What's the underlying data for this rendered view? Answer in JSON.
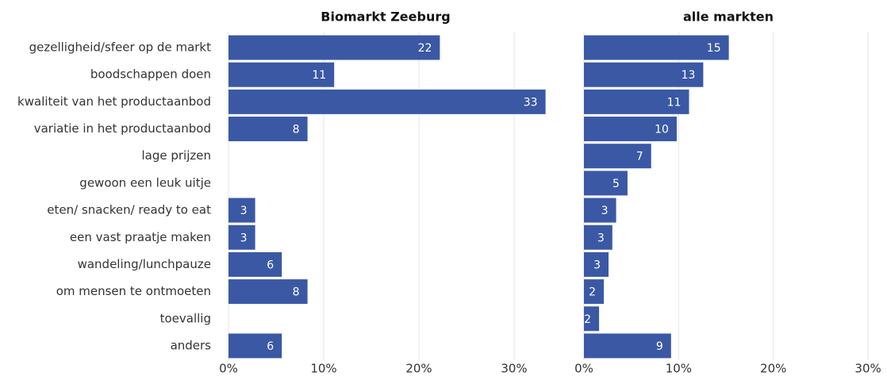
{
  "chart_data": [
    {
      "type": "bar",
      "orientation": "horizontal",
      "title": "Biomarkt Zeeburg",
      "color": "#3a58a4",
      "grid": true,
      "categories": [
        "gezelligheid/sfeer op de markt",
        "boodschappen doen",
        "kwaliteit van het productaanbod",
        "variatie in het productaanbod",
        "lage prijzen",
        "gewoon een leuk uitje",
        "eten/ snacken/ ready to eat",
        "een vast praatje maken",
        "wandeling/lunchpauze",
        "om mensen te ontmoeten",
        "toevallig",
        "anders"
      ],
      "values": [
        22.2,
        11.1,
        33.3,
        8.3,
        null,
        null,
        2.8,
        2.8,
        5.6,
        8.3,
        null,
        5.6
      ],
      "value_labels": [
        "22",
        "11",
        "33",
        "8",
        null,
        null,
        "3",
        "3",
        "6",
        "8",
        null,
        "6"
      ],
      "xlim": [
        0,
        34
      ],
      "xticks": [
        {
          "value": 0,
          "label": "0%"
        },
        {
          "value": 10,
          "label": "10%"
        },
        {
          "value": 20,
          "label": "20%"
        },
        {
          "value": 30,
          "label": "30%"
        }
      ]
    },
    {
      "type": "bar",
      "orientation": "horizontal",
      "title": "alle markten",
      "color": "#3a58a4",
      "grid": true,
      "values": [
        15.3,
        12.6,
        11.1,
        9.8,
        7.1,
        4.6,
        3.4,
        3.0,
        2.6,
        2.1,
        1.6,
        9.2
      ],
      "value_labels": [
        "15",
        "13",
        "11",
        "10",
        "7",
        "5",
        "3",
        "3",
        "3",
        "2",
        "2",
        "9"
      ],
      "xlim": [
        0,
        31.5
      ],
      "xticks": [
        {
          "value": 0,
          "label": "0%"
        },
        {
          "value": 10,
          "label": "10%"
        },
        {
          "value": 20,
          "label": "20%"
        },
        {
          "value": 30,
          "label": "30%"
        }
      ]
    }
  ]
}
